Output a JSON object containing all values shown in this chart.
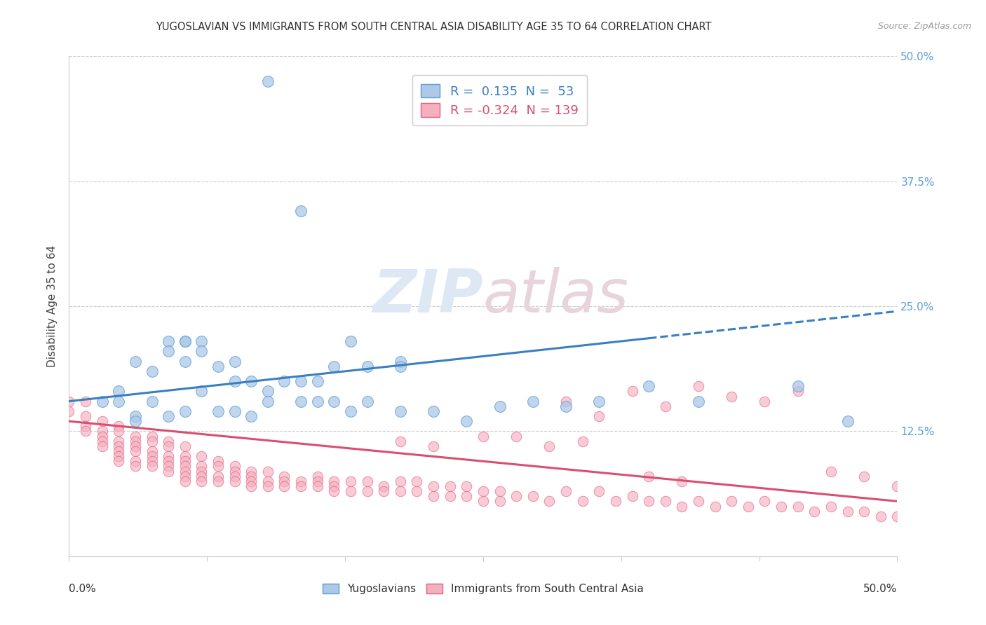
{
  "title": "YUGOSLAVIAN VS IMMIGRANTS FROM SOUTH CENTRAL ASIA DISABILITY AGE 35 TO 64 CORRELATION CHART",
  "source": "Source: ZipAtlas.com",
  "ylabel": "Disability Age 35 to 64",
  "xlim": [
    0.0,
    0.5
  ],
  "ylim": [
    0.0,
    0.5
  ],
  "blue_R": 0.135,
  "blue_N": 53,
  "pink_R": -0.324,
  "pink_N": 139,
  "blue_color": "#adc8e8",
  "pink_color": "#f5b0c0",
  "blue_edge_color": "#5a9fd4",
  "pink_edge_color": "#e06080",
  "blue_line_color": "#3a7fc1",
  "pink_line_color": "#d94f70",
  "legend_blue_label": "R =  0.135  N =  53",
  "legend_pink_label": "R = -0.324  N = 139",
  "watermark_zip": "ZIP",
  "watermark_atlas": "atlas",
  "legend_blue_series": "Yugoslavians",
  "legend_pink_series": "Immigrants from South Central Asia",
  "blue_line_x0": 0.0,
  "blue_line_y0": 0.155,
  "blue_line_x1": 0.5,
  "blue_line_y1": 0.245,
  "blue_line_solid_end": 0.35,
  "pink_line_x0": 0.0,
  "pink_line_y0": 0.135,
  "pink_line_x1": 0.5,
  "pink_line_y1": 0.055,
  "blue_x": [
    0.12,
    0.14,
    0.02,
    0.03,
    0.04,
    0.05,
    0.06,
    0.06,
    0.07,
    0.07,
    0.07,
    0.08,
    0.08,
    0.09,
    0.1,
    0.1,
    0.11,
    0.12,
    0.13,
    0.14,
    0.15,
    0.16,
    0.17,
    0.18,
    0.2,
    0.2,
    0.03,
    0.04,
    0.04,
    0.05,
    0.06,
    0.07,
    0.08,
    0.09,
    0.1,
    0.11,
    0.12,
    0.14,
    0.15,
    0.16,
    0.17,
    0.18,
    0.2,
    0.22,
    0.24,
    0.26,
    0.28,
    0.3,
    0.32,
    0.35,
    0.38,
    0.44,
    0.47
  ],
  "blue_y": [
    0.475,
    0.345,
    0.155,
    0.165,
    0.195,
    0.185,
    0.215,
    0.205,
    0.215,
    0.215,
    0.195,
    0.215,
    0.205,
    0.19,
    0.195,
    0.175,
    0.175,
    0.165,
    0.175,
    0.175,
    0.175,
    0.19,
    0.215,
    0.19,
    0.195,
    0.19,
    0.155,
    0.14,
    0.135,
    0.155,
    0.14,
    0.145,
    0.165,
    0.145,
    0.145,
    0.14,
    0.155,
    0.155,
    0.155,
    0.155,
    0.145,
    0.155,
    0.145,
    0.145,
    0.135,
    0.15,
    0.155,
    0.15,
    0.155,
    0.17,
    0.155,
    0.17,
    0.135
  ],
  "pink_x": [
    0.0,
    0.0,
    0.01,
    0.01,
    0.01,
    0.01,
    0.02,
    0.02,
    0.02,
    0.02,
    0.02,
    0.03,
    0.03,
    0.03,
    0.03,
    0.03,
    0.03,
    0.03,
    0.04,
    0.04,
    0.04,
    0.04,
    0.04,
    0.04,
    0.05,
    0.05,
    0.05,
    0.05,
    0.05,
    0.05,
    0.06,
    0.06,
    0.06,
    0.06,
    0.06,
    0.06,
    0.07,
    0.07,
    0.07,
    0.07,
    0.07,
    0.07,
    0.07,
    0.08,
    0.08,
    0.08,
    0.08,
    0.08,
    0.09,
    0.09,
    0.09,
    0.09,
    0.1,
    0.1,
    0.1,
    0.1,
    0.11,
    0.11,
    0.11,
    0.11,
    0.12,
    0.12,
    0.12,
    0.13,
    0.13,
    0.13,
    0.14,
    0.14,
    0.15,
    0.15,
    0.15,
    0.16,
    0.16,
    0.16,
    0.17,
    0.17,
    0.18,
    0.18,
    0.19,
    0.19,
    0.2,
    0.2,
    0.21,
    0.21,
    0.22,
    0.22,
    0.23,
    0.23,
    0.24,
    0.24,
    0.25,
    0.25,
    0.26,
    0.26,
    0.27,
    0.28,
    0.29,
    0.3,
    0.31,
    0.32,
    0.33,
    0.34,
    0.35,
    0.36,
    0.37,
    0.38,
    0.39,
    0.4,
    0.41,
    0.42,
    0.43,
    0.44,
    0.45,
    0.46,
    0.47,
    0.48,
    0.49,
    0.5,
    0.3,
    0.32,
    0.34,
    0.36,
    0.38,
    0.4,
    0.42,
    0.44,
    0.25,
    0.27,
    0.29,
    0.31,
    0.2,
    0.22,
    0.46,
    0.48,
    0.5,
    0.35,
    0.37
  ],
  "pink_y": [
    0.155,
    0.145,
    0.155,
    0.14,
    0.13,
    0.125,
    0.135,
    0.125,
    0.12,
    0.115,
    0.11,
    0.13,
    0.125,
    0.115,
    0.11,
    0.105,
    0.1,
    0.095,
    0.12,
    0.115,
    0.11,
    0.105,
    0.095,
    0.09,
    0.12,
    0.115,
    0.105,
    0.1,
    0.095,
    0.09,
    0.115,
    0.11,
    0.1,
    0.095,
    0.09,
    0.085,
    0.11,
    0.1,
    0.095,
    0.09,
    0.085,
    0.08,
    0.075,
    0.1,
    0.09,
    0.085,
    0.08,
    0.075,
    0.095,
    0.09,
    0.08,
    0.075,
    0.09,
    0.085,
    0.08,
    0.075,
    0.085,
    0.08,
    0.075,
    0.07,
    0.085,
    0.075,
    0.07,
    0.08,
    0.075,
    0.07,
    0.075,
    0.07,
    0.08,
    0.075,
    0.07,
    0.075,
    0.07,
    0.065,
    0.075,
    0.065,
    0.075,
    0.065,
    0.07,
    0.065,
    0.075,
    0.065,
    0.075,
    0.065,
    0.07,
    0.06,
    0.07,
    0.06,
    0.07,
    0.06,
    0.065,
    0.055,
    0.065,
    0.055,
    0.06,
    0.06,
    0.055,
    0.065,
    0.055,
    0.065,
    0.055,
    0.06,
    0.055,
    0.055,
    0.05,
    0.055,
    0.05,
    0.055,
    0.05,
    0.055,
    0.05,
    0.05,
    0.045,
    0.05,
    0.045,
    0.045,
    0.04,
    0.04,
    0.155,
    0.14,
    0.165,
    0.15,
    0.17,
    0.16,
    0.155,
    0.165,
    0.12,
    0.12,
    0.11,
    0.115,
    0.115,
    0.11,
    0.085,
    0.08,
    0.07,
    0.08,
    0.075
  ]
}
